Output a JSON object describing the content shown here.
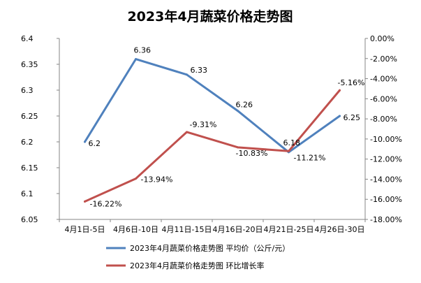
{
  "chart_data": {
    "type": "line",
    "title": "2023年4月蔬菜价格走势图",
    "categories": [
      "4月1日-5日",
      "4月6日-10日",
      "4月11日-15日",
      "4月16日-20日",
      "4月21日-25日",
      "4月26日-30日"
    ],
    "series": [
      {
        "name": "2023年4月蔬菜价格走势图  平均价（公斤/元）",
        "axis": "left",
        "color": "#4f81bd",
        "values": [
          6.2,
          6.36,
          6.33,
          6.26,
          6.18,
          6.25
        ],
        "labels": [
          "6.2",
          "6.36",
          "6.33",
          "6.26",
          "6.18",
          "6.25"
        ]
      },
      {
        "name": "2023年4月蔬菜价格走势图  环比增长率",
        "axis": "right",
        "color": "#c0504d",
        "values": [
          -16.22,
          -13.94,
          -9.31,
          -10.83,
          -11.21,
          -5.16
        ],
        "labels": [
          "-16.22%",
          "-13.94%",
          "-9.31%",
          "-10.83%",
          "-11.21%",
          "-5.16%"
        ]
      }
    ],
    "y_left": {
      "min": 6.05,
      "max": 6.4,
      "ticks": [
        "6.05",
        "6.1",
        "6.15",
        "6.2",
        "6.25",
        "6.3",
        "6.35",
        "6.4"
      ]
    },
    "y_right": {
      "min": -18,
      "max": 0,
      "ticks": [
        "-18.00%",
        "-16.00%",
        "-14.00%",
        "-12.00%",
        "-10.00%",
        "-8.00%",
        "-6.00%",
        "-4.00%",
        "-2.00%",
        "0.00%"
      ]
    },
    "grid": false,
    "legend_position": "bottom"
  }
}
